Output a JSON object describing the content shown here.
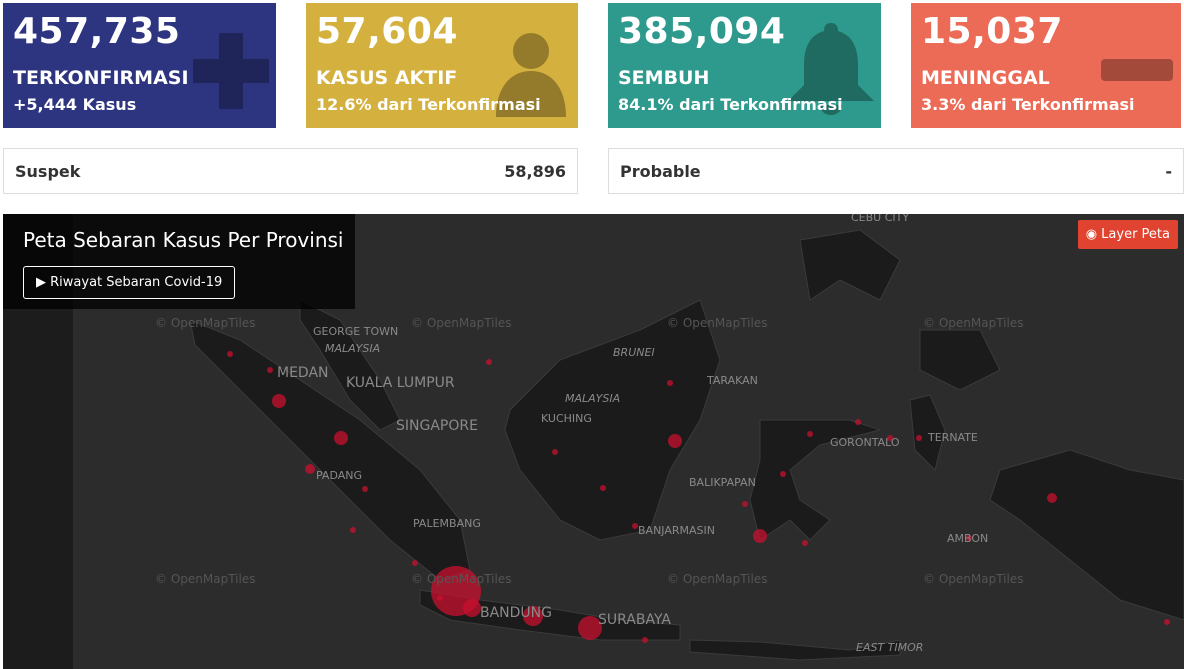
{
  "cards": [
    {
      "value": "457,735",
      "label": "TERKONFIRMASI",
      "sub": "+5,444 Kasus"
    },
    {
      "value": "57,604",
      "label": "KASUS AKTIF",
      "sub": "12.6% dari Terkonfirmasi"
    },
    {
      "value": "385,094",
      "label": "SEMBUH",
      "sub": "84.1% dari Terkonfirmasi"
    },
    {
      "value": "15,037",
      "label": "MENINGGAL",
      "sub": "3.3% dari Terkonfirmasi"
    }
  ],
  "stats": [
    {
      "label": "Suspek",
      "value": "58,896"
    },
    {
      "label": "Probable",
      "value": "-"
    }
  ],
  "map": {
    "title": "Peta Sebaran Kasus Per Provinsi",
    "history_button": "Riwayat Sebaran Covid-19",
    "layer_button": "Layer Peta",
    "attribution": "© OpenMapTiles",
    "labels": [
      "GEORGE TOWN",
      "MALAYSIA",
      "MEDAN",
      "KUALA LUMPUR",
      "SINGAPORE",
      "BRUNEI",
      "MALAYSIA",
      "TARAKAN",
      "KUCHING",
      "GORONTALO",
      "TERNATE",
      "BALIKPAPAN",
      "PADANG",
      "PALEMBANG",
      "BANJARMASIN",
      "AMBON",
      "BANDUNG",
      "SURABAYA",
      "EAST TIMOR",
      "CEBU CITY"
    ]
  }
}
